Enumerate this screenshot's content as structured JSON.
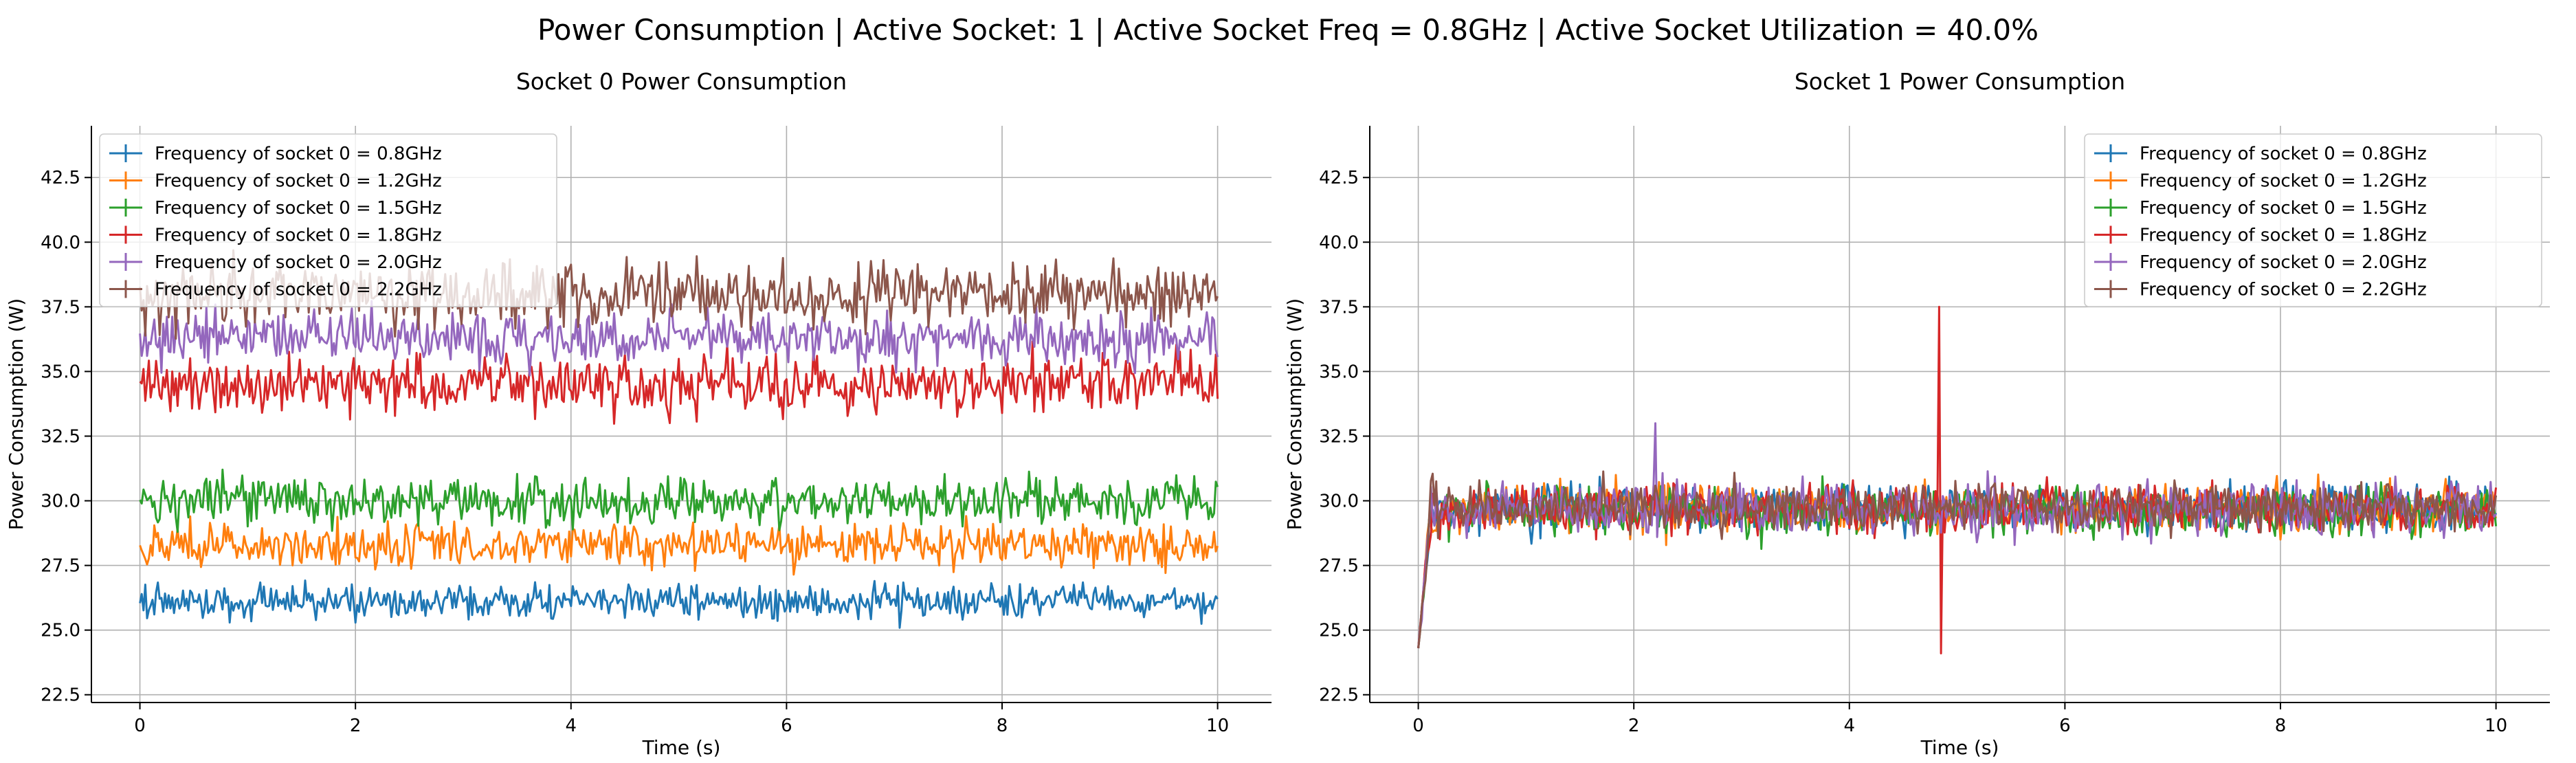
{
  "figure": {
    "suptitle": "Power Consumption | Active Socket: 1 | Active Socket Freq = 0.8GHz | Active Socket Utilization = 40.0%"
  },
  "colors": {
    "series": [
      "#1f77b4",
      "#ff7f0e",
      "#2ca02c",
      "#d62728",
      "#9467bd",
      "#8c564b"
    ],
    "grid": "#b0b0b0",
    "axis": "#000000"
  },
  "chart_data": [
    {
      "type": "line",
      "title": "Socket 0 Power Consumption",
      "xlabel": "Time (s)",
      "ylabel": "Power Consumption (W)",
      "xlim": [
        -0.45,
        10.5
      ],
      "ylim": [
        22.2,
        44.5
      ],
      "xticks": [
        "0",
        "2",
        "4",
        "6",
        "8",
        "10"
      ],
      "yticks": [
        "22.5",
        "25.0",
        "27.5",
        "30.0",
        "32.5",
        "35.0",
        "37.5",
        "40.0",
        "42.5"
      ],
      "grid": true,
      "legend": "upper left",
      "duration_s": 10,
      "series": [
        {
          "name": "Frequency of socket 0 = 0.8GHz",
          "mean": 26.1,
          "noise": 0.35
        },
        {
          "name": "Frequency of socket 0 = 1.2GHz",
          "mean": 28.3,
          "noise": 0.45
        },
        {
          "name": "Frequency of socket 0 = 1.5GHz",
          "mean": 30.0,
          "noise": 0.5
        },
        {
          "name": "Frequency of socket 0 = 1.8GHz",
          "mean": 34.5,
          "noise": 0.6
        },
        {
          "name": "Frequency of socket 0 = 2.0GHz",
          "mean": 36.3,
          "noise": 0.55
        },
        {
          "name": "Frequency of socket 0 = 2.2GHz",
          "mean": 38.0,
          "noise": 0.65
        }
      ]
    },
    {
      "type": "line",
      "title": "Socket 1 Power Consumption",
      "xlabel": "Time (s)",
      "ylabel": "Power Consumption (W)",
      "xlim": [
        -0.45,
        10.5
      ],
      "ylim": [
        22.2,
        44.5
      ],
      "xticks": [
        "0",
        "2",
        "4",
        "6",
        "8",
        "10"
      ],
      "yticks": [
        "22.5",
        "25.0",
        "27.5",
        "30.0",
        "32.5",
        "35.0",
        "37.5",
        "40.0",
        "42.5"
      ],
      "grid": true,
      "legend": "upper right",
      "duration_s": 10,
      "start_value": 24.3,
      "series": [
        {
          "name": "Frequency of socket 0 = 0.8GHz",
          "mean": 29.7,
          "noise": 0.5
        },
        {
          "name": "Frequency of socket 0 = 1.2GHz",
          "mean": 29.7,
          "noise": 0.5
        },
        {
          "name": "Frequency of socket 0 = 1.5GHz",
          "mean": 29.6,
          "noise": 0.5
        },
        {
          "name": "Frequency of socket 0 = 1.8GHz",
          "mean": 29.7,
          "noise": 0.5,
          "spike": {
            "x": 4.83,
            "high": 37.5,
            "low": 24.1
          }
        },
        {
          "name": "Frequency of socket 0 = 2.0GHz",
          "mean": 29.7,
          "noise": 0.55,
          "spike": {
            "x": 2.2,
            "high": 33.0,
            "low": 28.6
          }
        },
        {
          "name": "Frequency of socket 0 = 2.2GHz",
          "mean": 29.8,
          "noise": 0.5
        }
      ]
    }
  ]
}
